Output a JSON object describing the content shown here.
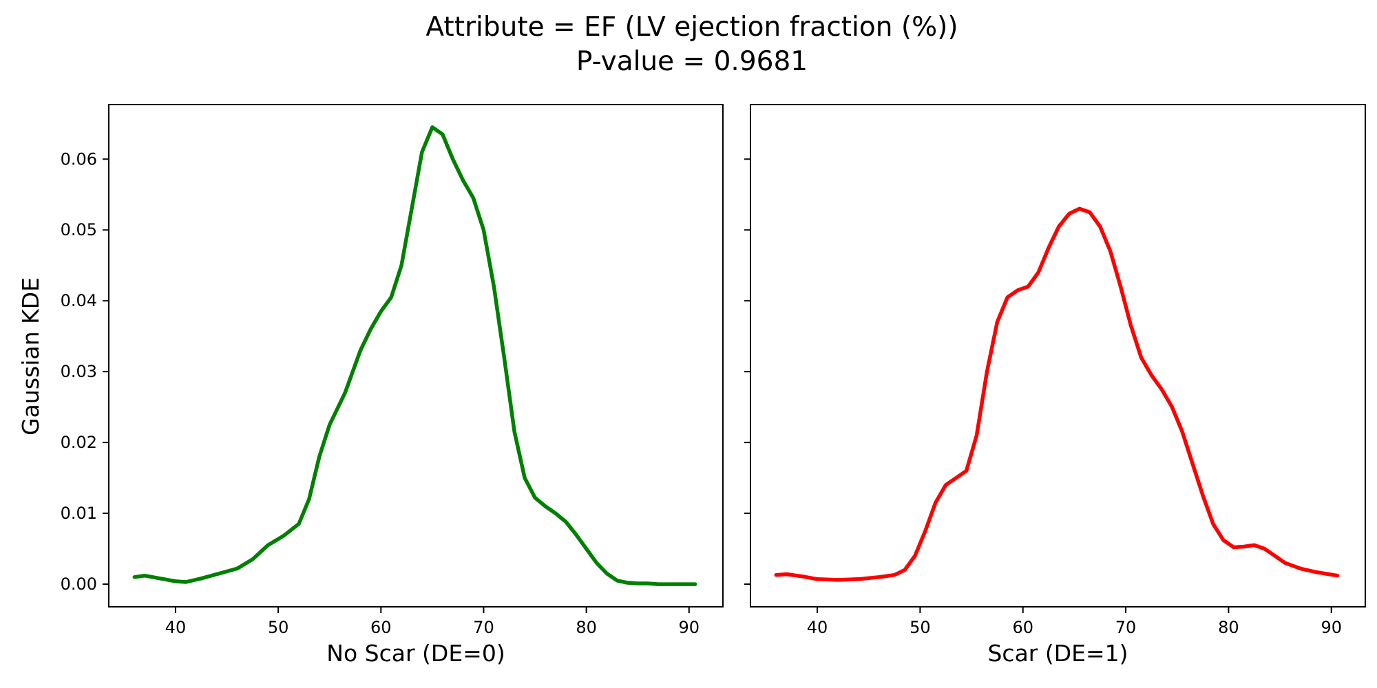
{
  "figure": {
    "title": "Attribute = EF (LV ejection fraction (%))",
    "subtitle": "P-value = 0.9681",
    "shared_ylabel": "Gaussian KDE"
  },
  "chart_data": [
    {
      "type": "line",
      "title": "",
      "xlabel": "No Scar (DE=0)",
      "ylabel": "Gaussian KDE",
      "xlim": [
        33.5,
        93.3
      ],
      "ylim": [
        -0.0032,
        0.0677
      ],
      "xticks": [
        40,
        50,
        60,
        70,
        80,
        90
      ],
      "yticks": [
        0.0,
        0.01,
        0.02,
        0.03,
        0.04,
        0.05,
        0.06
      ],
      "ytick_labels": [
        "0.00",
        "0.01",
        "0.02",
        "0.03",
        "0.04",
        "0.05",
        "0.06"
      ],
      "grid": false,
      "series": [
        {
          "color": "#008000",
          "x": [
            36.0,
            37.0,
            38.5,
            40.0,
            41.0,
            42.5,
            44.0,
            46.0,
            47.5,
            49.0,
            50.5,
            52.0,
            53.0,
            54.0,
            55.0,
            56.5,
            58.0,
            59.0,
            60.0,
            61.0,
            62.0,
            63.0,
            64.0,
            65.0,
            66.0,
            67.0,
            68.0,
            69.0,
            70.0,
            71.0,
            72.0,
            73.0,
            74.0,
            75.0,
            76.0,
            77.0,
            78.0,
            79.0,
            80.0,
            81.0,
            82.0,
            83.0,
            84.0,
            85.0,
            86.0,
            87.0,
            88.0,
            90.6
          ],
          "y": [
            0.001,
            0.0012,
            0.0008,
            0.0004,
            0.0003,
            0.0008,
            0.0014,
            0.0022,
            0.0035,
            0.0055,
            0.0068,
            0.0085,
            0.012,
            0.018,
            0.0225,
            0.027,
            0.033,
            0.036,
            0.0385,
            0.0405,
            0.045,
            0.053,
            0.061,
            0.0645,
            0.0635,
            0.06,
            0.057,
            0.0545,
            0.05,
            0.042,
            0.032,
            0.0215,
            0.015,
            0.0122,
            0.011,
            0.01,
            0.0088,
            0.007,
            0.005,
            0.003,
            0.0015,
            0.0005,
            0.0002,
            0.0001,
            0.0001,
            0.0,
            0.0,
            0.0
          ]
        }
      ]
    },
    {
      "type": "line",
      "title": "",
      "xlabel": "Scar (DE=1)",
      "ylabel": "",
      "xlim": [
        33.5,
        93.3
      ],
      "ylim": [
        -0.0032,
        0.0677
      ],
      "xticks": [
        40,
        50,
        60,
        70,
        80,
        90
      ],
      "yticks": [
        0.0,
        0.01,
        0.02,
        0.03,
        0.04,
        0.05,
        0.06
      ],
      "grid": false,
      "series": [
        {
          "color": "#ff0000",
          "x": [
            36.0,
            37.0,
            38.5,
            40.0,
            42.0,
            44.0,
            46.0,
            47.5,
            48.5,
            49.5,
            50.5,
            51.5,
            52.5,
            53.5,
            54.5,
            55.5,
            56.5,
            57.5,
            58.5,
            59.5,
            60.5,
            61.5,
            62.5,
            63.5,
            64.5,
            65.5,
            66.5,
            67.5,
            68.5,
            69.5,
            70.5,
            71.5,
            72.5,
            73.5,
            74.5,
            75.5,
            76.5,
            77.5,
            78.5,
            79.5,
            80.5,
            81.5,
            82.5,
            83.5,
            84.5,
            85.5,
            87.0,
            88.5,
            90.6
          ],
          "y": [
            0.0013,
            0.0014,
            0.0011,
            0.0007,
            0.0006,
            0.0007,
            0.001,
            0.0013,
            0.002,
            0.004,
            0.0075,
            0.0115,
            0.014,
            0.015,
            0.016,
            0.021,
            0.03,
            0.037,
            0.0405,
            0.0415,
            0.042,
            0.044,
            0.0475,
            0.0505,
            0.0523,
            0.053,
            0.0525,
            0.0505,
            0.047,
            0.042,
            0.0365,
            0.032,
            0.0295,
            0.0275,
            0.025,
            0.0215,
            0.017,
            0.0125,
            0.0085,
            0.0062,
            0.0052,
            0.0053,
            0.0055,
            0.005,
            0.004,
            0.003,
            0.0022,
            0.0017,
            0.0012
          ]
        }
      ]
    }
  ]
}
